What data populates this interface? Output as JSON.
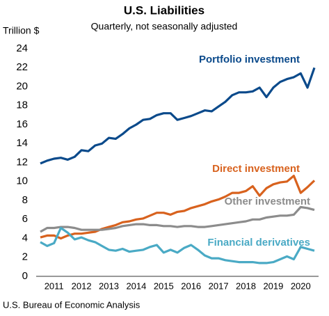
{
  "chart_data": {
    "type": "line",
    "title": "U.S. Liabilities",
    "subtitle": "Quarterly, not seasonally adjusted",
    "y_label": "Trillion $",
    "source": "U.S. Bureau of Economic Analysis",
    "categories": [
      null,
      null,
      "2011",
      null,
      null,
      null,
      "2012",
      null,
      null,
      null,
      "2013",
      null,
      null,
      null,
      "2014",
      null,
      null,
      null,
      "2015",
      null,
      null,
      null,
      "2016",
      null,
      null,
      null,
      "2017",
      null,
      null,
      null,
      "2018",
      null,
      null,
      null,
      "2019",
      null,
      null,
      null,
      "2020",
      null,
      null
    ],
    "series": [
      {
        "name": "Portfolio investment",
        "color": "#0b4a8b",
        "values": [
          11.9,
          12.2,
          12.4,
          12.5,
          12.3,
          12.6,
          13.3,
          13.2,
          13.8,
          14.0,
          14.6,
          14.5,
          15.0,
          15.6,
          16.0,
          16.5,
          16.6,
          17.0,
          17.2,
          17.2,
          16.5,
          16.7,
          16.9,
          17.2,
          17.5,
          17.4,
          17.9,
          18.4,
          19.1,
          19.4,
          19.4,
          19.5,
          19.9,
          18.9,
          19.9,
          20.5,
          20.8,
          21.0,
          21.4,
          19.9,
          22.0
        ]
      },
      {
        "name": "Direct investment",
        "color": "#d8621e",
        "values": [
          4.1,
          4.3,
          4.3,
          4.0,
          4.3,
          4.5,
          4.5,
          4.6,
          4.7,
          5.0,
          5.2,
          5.4,
          5.7,
          5.8,
          6.0,
          6.1,
          6.4,
          6.7,
          6.7,
          6.5,
          6.8,
          6.9,
          7.2,
          7.4,
          7.6,
          7.9,
          8.1,
          8.4,
          8.8,
          8.8,
          9.0,
          9.5,
          8.5,
          9.3,
          9.7,
          9.9,
          10.0,
          10.6,
          8.8,
          9.4,
          10.1
        ]
      },
      {
        "name": "Other investment",
        "color": "#8c8c8c",
        "values": [
          4.7,
          5.1,
          5.1,
          5.2,
          5.2,
          5.1,
          4.9,
          4.9,
          4.9,
          4.9,
          5.0,
          5.1,
          5.3,
          5.4,
          5.5,
          5.5,
          5.4,
          5.4,
          5.3,
          5.3,
          5.2,
          5.3,
          5.3,
          5.2,
          5.2,
          5.3,
          5.4,
          5.5,
          5.6,
          5.7,
          5.8,
          6.0,
          6.0,
          6.2,
          6.3,
          6.4,
          6.4,
          6.5,
          7.3,
          7.2,
          7.0
        ]
      },
      {
        "name": "Financial derivatives",
        "color": "#4aaac5",
        "values": [
          3.6,
          3.2,
          3.5,
          5.1,
          4.6,
          3.9,
          4.1,
          3.8,
          3.6,
          3.2,
          2.8,
          2.7,
          2.9,
          2.6,
          2.7,
          2.8,
          3.1,
          3.3,
          2.5,
          2.8,
          2.5,
          3.0,
          3.3,
          2.8,
          2.2,
          1.9,
          1.9,
          1.7,
          1.6,
          1.5,
          1.5,
          1.5,
          1.4,
          1.4,
          1.5,
          1.8,
          2.1,
          1.8,
          3.1,
          2.9,
          2.7
        ]
      }
    ],
    "ylim": [
      0,
      24
    ],
    "yticks": [
      0,
      2,
      4,
      6,
      8,
      10,
      12,
      14,
      16,
      18,
      20,
      22,
      24
    ],
    "grid": false
  }
}
